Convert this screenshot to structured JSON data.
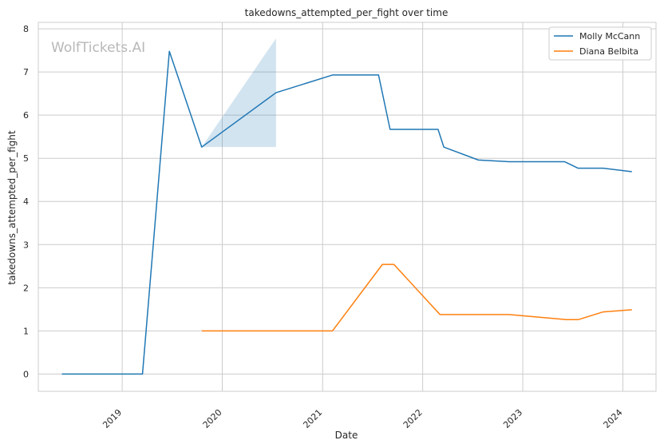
{
  "chart_data": {
    "type": "line",
    "title": "takedowns_attempted_per_fight over time",
    "xlabel": "Date",
    "ylabel": "takedowns_attempted_per_fight",
    "watermark": "WolfTickets.AI",
    "xlim": [
      "2018-03-01",
      "2024-05-01"
    ],
    "ylim": [
      -0.4,
      8.15
    ],
    "x_ticks": [
      "2019",
      "2020",
      "2021",
      "2022",
      "2023",
      "2024"
    ],
    "y_ticks": [
      "0",
      "1",
      "2",
      "3",
      "4",
      "5",
      "6",
      "7",
      "8"
    ],
    "grid": true,
    "legend_position": "top-right",
    "series": [
      {
        "name": "Molly McCann",
        "color": "#1f77b4",
        "points": [
          {
            "x": "2018-05-26",
            "y": 0
          },
          {
            "x": "2019-03-16",
            "y": 0
          },
          {
            "x": "2019-06-22",
            "y": 7.48
          },
          {
            "x": "2019-10-18",
            "y": 5.26
          },
          {
            "x": "2020-07-15",
            "y": 6.52
          },
          {
            "x": "2021-02-06",
            "y": 6.93
          },
          {
            "x": "2021-07-24",
            "y": 6.93
          },
          {
            "x": "2021-09-04",
            "y": 5.67
          },
          {
            "x": "2022-02-26",
            "y": 5.67
          },
          {
            "x": "2022-03-19",
            "y": 5.26
          },
          {
            "x": "2022-07-23",
            "y": 4.96
          },
          {
            "x": "2022-11-12",
            "y": 4.92
          },
          {
            "x": "2023-06-03",
            "y": 4.92
          },
          {
            "x": "2023-07-22",
            "y": 4.77
          },
          {
            "x": "2023-10-21",
            "y": 4.77
          },
          {
            "x": "2024-02-03",
            "y": 4.69
          }
        ],
        "band": {
          "x": [
            "2019-10-18",
            "2020-07-15"
          ],
          "lower": [
            5.26,
            5.26
          ],
          "upper": [
            5.26,
            7.78
          ]
        }
      },
      {
        "name": "Diana Belbita",
        "color": "#ff7f0e",
        "points": [
          {
            "x": "2019-10-18",
            "y": 1
          },
          {
            "x": "2021-02-06",
            "y": 1
          },
          {
            "x": "2021-08-07",
            "y": 2.54
          },
          {
            "x": "2021-09-18",
            "y": 2.54
          },
          {
            "x": "2022-03-05",
            "y": 1.38
          },
          {
            "x": "2022-11-12",
            "y": 1.38
          },
          {
            "x": "2023-06-10",
            "y": 1.26
          },
          {
            "x": "2023-07-22",
            "y": 1.26
          },
          {
            "x": "2023-10-21",
            "y": 1.44
          },
          {
            "x": "2024-02-03",
            "y": 1.49
          }
        ]
      }
    ]
  }
}
